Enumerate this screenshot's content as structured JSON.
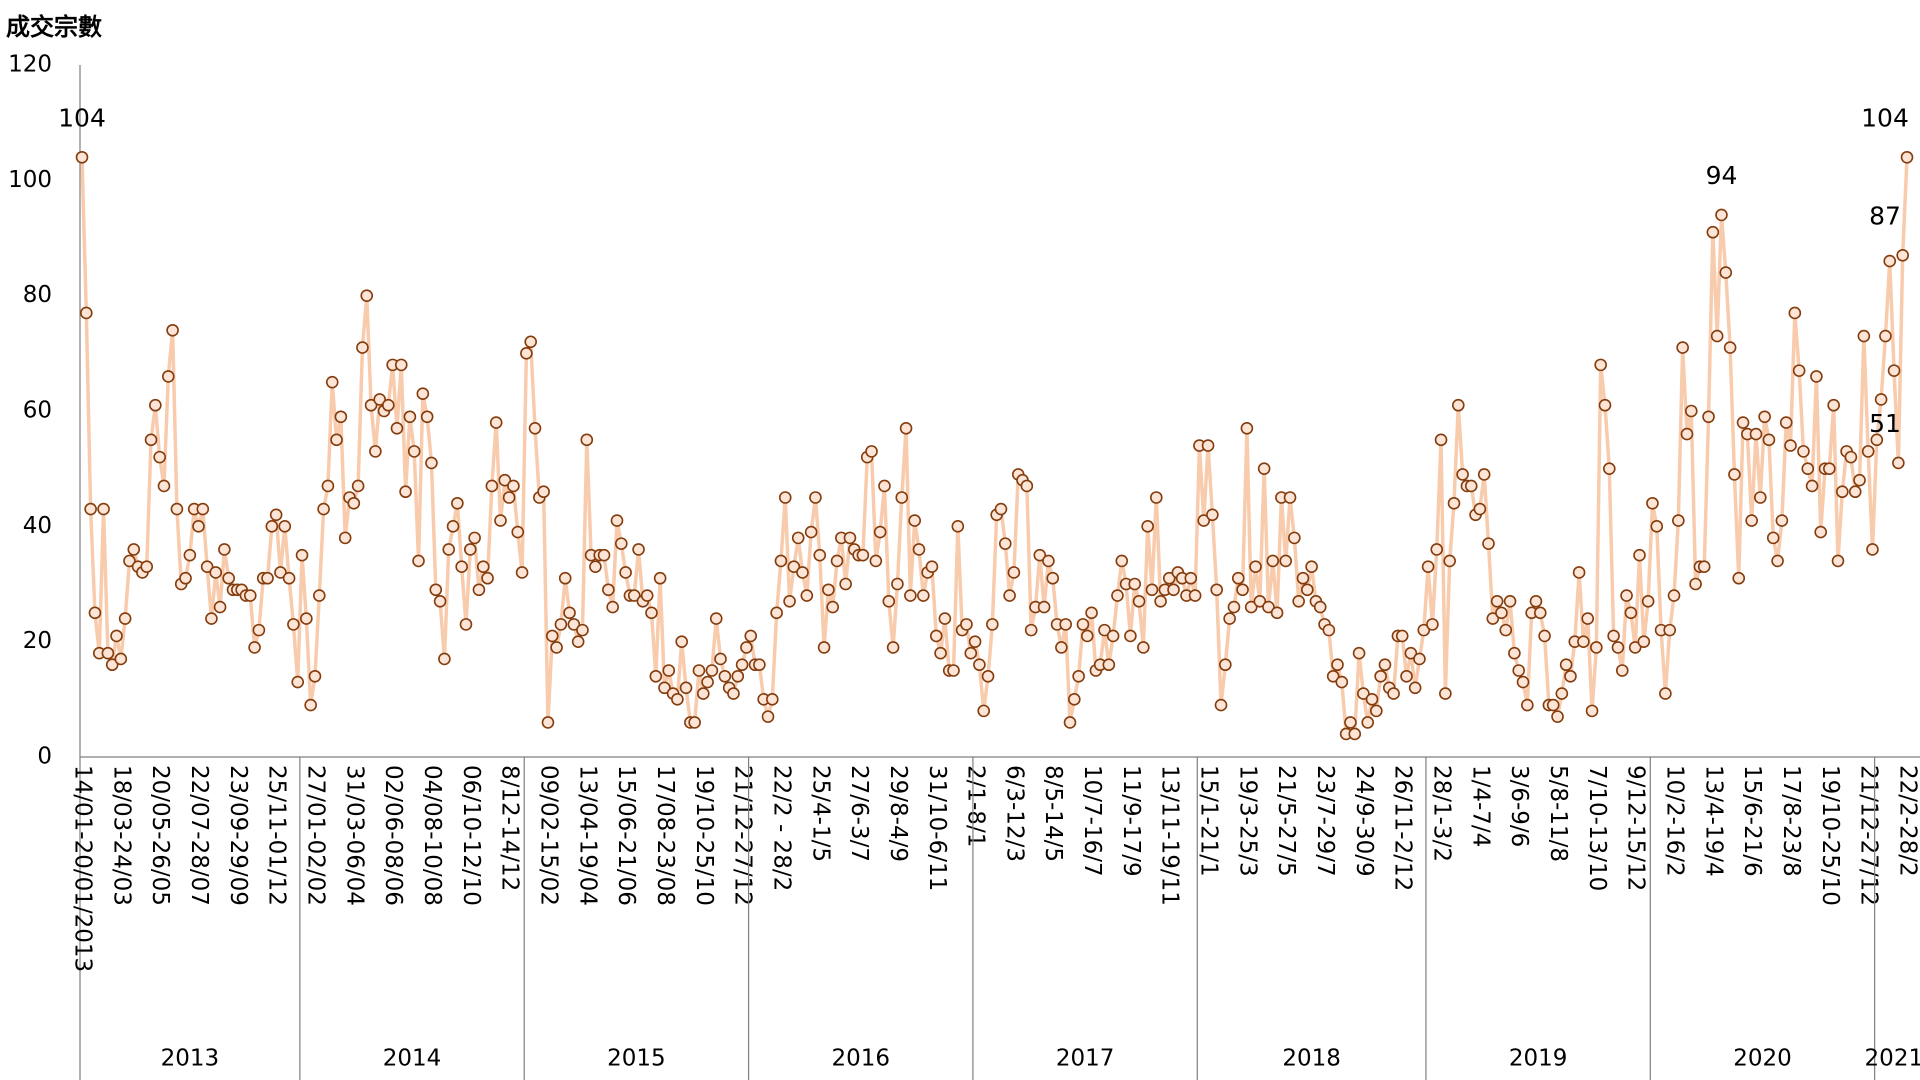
{
  "chart_data": {
    "type": "line",
    "y_label": "成交宗數",
    "ylim": [
      0,
      120
    ],
    "yticks": [
      0,
      20,
      40,
      60,
      80,
      100,
      120
    ],
    "line_color": "#f8cbad",
    "marker_fill": "#fce4d6",
    "marker_edge": "#843c0c",
    "years": [
      "2013",
      "2014",
      "2015",
      "2016",
      "2017",
      "2018",
      "2019",
      "2020",
      "2021"
    ],
    "categories": [
      "14/01-20/01/2013",
      null,
      null,
      null,
      null,
      null,
      null,
      null,
      null,
      "18/03-24/03",
      null,
      null,
      null,
      null,
      null,
      null,
      null,
      null,
      "20/05-26/05",
      null,
      null,
      null,
      null,
      null,
      null,
      null,
      null,
      "22/07-28/07",
      null,
      null,
      null,
      null,
      null,
      null,
      null,
      null,
      "23/09-29/09",
      null,
      null,
      null,
      null,
      null,
      null,
      null,
      null,
      "25/11-01/12",
      null,
      null,
      null,
      null,
      null,
      null,
      null,
      null,
      "27/01-02/02",
      null,
      null,
      null,
      null,
      null,
      null,
      null,
      null,
      "31/03-06/04",
      null,
      null,
      null,
      null,
      null,
      null,
      null,
      null,
      "02/06-08/06",
      null,
      null,
      null,
      null,
      null,
      null,
      null,
      null,
      "04/08-10/08",
      null,
      null,
      null,
      null,
      null,
      null,
      null,
      null,
      "06/10-12/10",
      null,
      null,
      null,
      null,
      null,
      null,
      null,
      null,
      "8/12-14/12",
      null,
      null,
      null,
      null,
      null,
      null,
      null,
      null,
      "09/02-15/02",
      null,
      null,
      null,
      null,
      null,
      null,
      null,
      null,
      "13/04-19/04",
      null,
      null,
      null,
      null,
      null,
      null,
      null,
      null,
      "15/06-21/06",
      null,
      null,
      null,
      null,
      null,
      null,
      null,
      null,
      "17/08-23/08",
      null,
      null,
      null,
      null,
      null,
      null,
      null,
      null,
      "19/10-25/10",
      null,
      null,
      null,
      null,
      null,
      null,
      null,
      null,
      "21/12-27/12",
      null,
      null,
      null,
      null,
      null,
      null,
      null,
      null,
      "22/2 - 28/2",
      null,
      null,
      null,
      null,
      null,
      null,
      null,
      null,
      "25/4-1/5",
      null,
      null,
      null,
      null,
      null,
      null,
      null,
      null,
      "27/6-3/7",
      null,
      null,
      null,
      null,
      null,
      null,
      null,
      null,
      "29/8-4/9",
      null,
      null,
      null,
      null,
      null,
      null,
      null,
      null,
      "31/10-6/11",
      null,
      null,
      null,
      null,
      null,
      null,
      null,
      null,
      "2/1-8/1",
      null,
      null,
      null,
      null,
      null,
      null,
      null,
      null,
      "6/3-12/3",
      null,
      null,
      null,
      null,
      null,
      null,
      null,
      null,
      "8/5-14/5",
      null,
      null,
      null,
      null,
      null,
      null,
      null,
      null,
      "10/7-16/7",
      null,
      null,
      null,
      null,
      null,
      null,
      null,
      null,
      "11/9-17/9",
      null,
      null,
      null,
      null,
      null,
      null,
      null,
      null,
      "13/11-19/11",
      null,
      null,
      null,
      null,
      null,
      null,
      null,
      null,
      "15/1-21/1",
      null,
      null,
      null,
      null,
      null,
      null,
      null,
      null,
      "19/3-25/3",
      null,
      null,
      null,
      null,
      null,
      null,
      null,
      null,
      "21/5-27/5",
      null,
      null,
      null,
      null,
      null,
      null,
      null,
      null,
      "23/7-29/7",
      null,
      null,
      null,
      null,
      null,
      null,
      null,
      null,
      "24/9-30/9",
      null,
      null,
      null,
      null,
      null,
      null,
      null,
      null,
      "26/11-2/12",
      null,
      null,
      null,
      null,
      null,
      null,
      null,
      null,
      "28/1-3/2",
      null,
      null,
      null,
      null,
      null,
      null,
      null,
      null,
      "1/4-7/4",
      null,
      null,
      null,
      null,
      null,
      null,
      null,
      null,
      "3/6-9/6",
      null,
      null,
      null,
      null,
      null,
      null,
      null,
      null,
      "5/8-11/8",
      null,
      null,
      null,
      null,
      null,
      null,
      null,
      null,
      "7/10-13/10",
      null,
      null,
      null,
      null,
      null,
      null,
      null,
      null,
      "9/12-15/12",
      null,
      null,
      null,
      null,
      null,
      null,
      null,
      null,
      "10/2-16/2",
      null,
      null,
      null,
      null,
      null,
      null,
      null,
      null,
      "13/4-19/4",
      null,
      null,
      null,
      null,
      null,
      null,
      null,
      null,
      "15/6-21/6",
      null,
      null,
      null,
      null,
      null,
      null,
      null,
      null,
      "17/8-23/8",
      null,
      null,
      null,
      null,
      null,
      null,
      null,
      null,
      "19/10-25/10",
      null,
      null,
      null,
      null,
      null,
      null,
      null,
      null,
      "21/12-27/12",
      null,
      null,
      null,
      null,
      null,
      null,
      null,
      null,
      "22/2-28/2"
    ],
    "values": [
      104,
      77,
      43,
      25,
      18,
      43,
      18,
      16,
      21,
      17,
      24,
      34,
      36,
      33,
      32,
      33,
      55,
      61,
      52,
      47,
      66,
      74,
      43,
      30,
      31,
      35,
      43,
      40,
      43,
      33,
      24,
      32,
      26,
      36,
      31,
      29,
      29,
      29,
      28,
      28,
      19,
      22,
      31,
      31,
      40,
      42,
      32,
      40,
      31,
      23,
      13,
      35,
      24,
      9,
      14,
      28,
      43,
      47,
      65,
      55,
      59,
      38,
      45,
      44,
      47,
      71,
      80,
      61,
      53,
      62,
      60,
      61,
      68,
      57,
      68,
      46,
      59,
      53,
      34,
      63,
      59,
      51,
      29,
      27,
      17,
      36,
      40,
      44,
      33,
      23,
      36,
      38,
      29,
      33,
      31,
      47,
      58,
      41,
      48,
      45,
      47,
      39,
      32,
      70,
      72,
      57,
      45,
      46,
      6,
      21,
      19,
      23,
      31,
      25,
      23,
      20,
      22,
      55,
      35,
      33,
      35,
      35,
      29,
      26,
      41,
      37,
      32,
      28,
      28,
      36,
      27,
      28,
      25,
      14,
      31,
      12,
      15,
      11,
      10,
      20,
      12,
      6,
      6,
      15,
      11,
      13,
      15,
      24,
      17,
      14,
      12,
      11,
      14,
      16,
      19,
      21,
      16,
      16,
      10,
      7,
      10,
      25,
      34,
      45,
      27,
      33,
      38,
      32,
      28,
      39,
      45,
      35,
      19,
      29,
      26,
      34,
      38,
      30,
      38,
      36,
      35,
      35,
      52,
      53,
      34,
      39,
      47,
      27,
      19,
      30,
      45,
      57,
      28,
      41,
      36,
      28,
      32,
      33,
      21,
      18,
      24,
      15,
      15,
      40,
      22,
      23,
      18,
      20,
      16,
      8,
      14,
      23,
      42,
      43,
      37,
      28,
      32,
      49,
      48,
      47,
      22,
      26,
      35,
      26,
      34,
      31,
      23,
      19,
      23,
      6,
      10,
      14,
      23,
      21,
      25,
      15,
      16,
      22,
      16,
      21,
      28,
      34,
      30,
      21,
      30,
      27,
      19,
      40,
      29,
      45,
      27,
      29,
      31,
      29,
      32,
      31,
      28,
      31,
      28,
      54,
      41,
      54,
      42,
      29,
      9,
      16,
      24,
      26,
      31,
      29,
      57,
      26,
      33,
      27,
      50,
      26,
      34,
      25,
      45,
      34,
      45,
      38,
      27,
      31,
      29,
      33,
      27,
      26,
      23,
      22,
      14,
      16,
      13,
      4,
      6,
      4,
      18,
      11,
      6,
      10,
      8,
      14,
      16,
      12,
      11,
      21,
      21,
      14,
      18,
      12,
      17,
      22,
      33,
      23,
      36,
      55,
      11,
      34,
      44,
      61,
      49,
      47,
      47,
      42,
      43,
      49,
      37,
      24,
      27,
      25,
      22,
      27,
      18,
      15,
      13,
      9,
      25,
      27,
      25,
      21,
      9,
      9,
      7,
      11,
      16,
      14,
      20,
      32,
      20,
      24,
      8,
      19,
      68,
      61,
      50,
      21,
      19,
      15,
      28,
      25,
      19,
      35,
      20,
      27,
      44,
      40,
      22,
      11,
      22,
      28,
      41,
      71,
      56,
      60,
      30,
      33,
      33,
      59,
      91,
      73,
      94,
      84,
      71,
      49,
      31,
      58,
      56,
      41,
      56,
      45,
      59,
      55,
      38,
      34,
      41,
      58,
      54,
      77,
      67,
      53,
      50,
      47,
      66,
      39,
      50,
      50,
      61,
      34,
      46,
      53,
      52,
      46,
      48,
      73,
      53,
      36,
      55,
      62,
      73,
      86,
      67,
      51,
      87,
      104
    ],
    "value_labels": [
      "104",
      null,
      null,
      null,
      null,
      null,
      null,
      null,
      null,
      null,
      null,
      null,
      null,
      null,
      null,
      null,
      null,
      null,
      null,
      null,
      null,
      null,
      null,
      null,
      null,
      null,
      null,
      null,
      null,
      null,
      null,
      null,
      null,
      null,
      null,
      null,
      null,
      null,
      null,
      null,
      null,
      null,
      null,
      null,
      null,
      null,
      null,
      null,
      null,
      null,
      null,
      null,
      null,
      null,
      null,
      null,
      null,
      null,
      null,
      null,
      null,
      null,
      null,
      null,
      null,
      null,
      null,
      null,
      null,
      null,
      null,
      null,
      null,
      null,
      null,
      null,
      null,
      null,
      null,
      null,
      null,
      null,
      null,
      null,
      null,
      null,
      null,
      null,
      null,
      null,
      null,
      null,
      null,
      null,
      null,
      null,
      null,
      null,
      null,
      null,
      null,
      null,
      null,
      null,
      null,
      null,
      null,
      null,
      null,
      null,
      null,
      null,
      null,
      null,
      null,
      null,
      null,
      null,
      null,
      null,
      null,
      null,
      null,
      null,
      null,
      null,
      null,
      null,
      null,
      null,
      null,
      null,
      null,
      null,
      null,
      null,
      null,
      null,
      null,
      null,
      null,
      null,
      null,
      null,
      null,
      null,
      null,
      null,
      null,
      null,
      null,
      null,
      null,
      null,
      null,
      null,
      null,
      null,
      null,
      null,
      null,
      null,
      null,
      null,
      null,
      null,
      null,
      null,
      null,
      null,
      null,
      null,
      null,
      null,
      null,
      null,
      null,
      null,
      null,
      null,
      null,
      null,
      null,
      null,
      null,
      null,
      null,
      null,
      null,
      null,
      null,
      null,
      null,
      null,
      null,
      null,
      null,
      null,
      null,
      null,
      null,
      null,
      null,
      null,
      null,
      null,
      null,
      null,
      null,
      null,
      null,
      null,
      null,
      null,
      null,
      null,
      null,
      null,
      null,
      null,
      null,
      null,
      null,
      null,
      null,
      null,
      null,
      null,
      null,
      null,
      null,
      null,
      null,
      null,
      null,
      null,
      null,
      null,
      null,
      null,
      null,
      null,
      null,
      null,
      null,
      null,
      null,
      null,
      null,
      null,
      null,
      null,
      null,
      null,
      null,
      null,
      null,
      null,
      null,
      null,
      null,
      null,
      null,
      null,
      null,
      null,
      null,
      null,
      null,
      null,
      null,
      null,
      null,
      null,
      null,
      null,
      null,
      null,
      null,
      null,
      null,
      null,
      null,
      null,
      null,
      null,
      null,
      null,
      null,
      null,
      null,
      null,
      null,
      null,
      null,
      null,
      null,
      null,
      null,
      null,
      null,
      null,
      null,
      null,
      null,
      null,
      null,
      null,
      null,
      null,
      null,
      null,
      null,
      null,
      null,
      null,
      null,
      null,
      null,
      null,
      null,
      null,
      null,
      null,
      null,
      null,
      null,
      null,
      null,
      null,
      null,
      null,
      null,
      null,
      null,
      null,
      null,
      null,
      null,
      null,
      null,
      null,
      null,
      null,
      null,
      null,
      null,
      null,
      null,
      null,
      null,
      null,
      null,
      null,
      null,
      null,
      null,
      null,
      null,
      null,
      null,
      null,
      null,
      null,
      null,
      null,
      null,
      null,
      null,
      null,
      null,
      null,
      null,
      null,
      null,
      null,
      null,
      null,
      null,
      null,
      "94",
      null,
      null,
      null,
      null,
      null,
      null,
      null,
      null,
      null,
      null,
      null,
      null,
      null,
      null,
      null,
      null,
      null,
      null,
      null,
      null,
      null,
      null,
      null,
      null,
      null,
      null,
      null,
      null,
      null,
      null,
      null,
      null,
      null,
      null,
      null,
      null,
      null,
      null,
      null,
      null,
      "51",
      "87",
      "104"
    ]
  }
}
